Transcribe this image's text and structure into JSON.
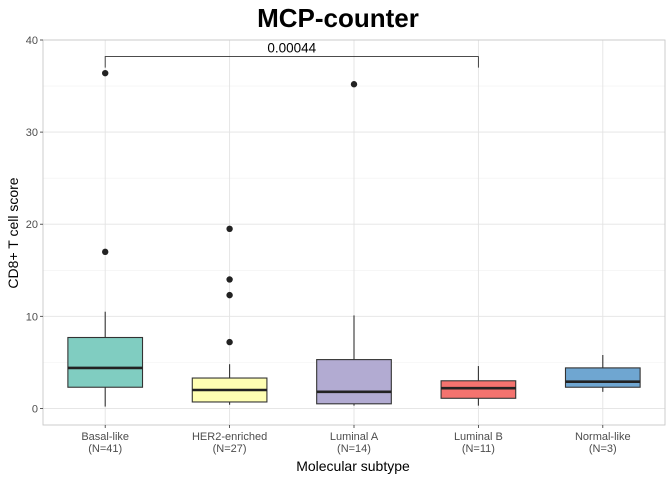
{
  "chart_data": {
    "type": "box",
    "title": "MCP-counter",
    "xlabel": "Molecular subtype",
    "ylabel": "CD8+ T cell score",
    "ylim": [
      -1.8,
      40
    ],
    "yticks": [
      0,
      10,
      20,
      30,
      40
    ],
    "grid": true,
    "legend": "none",
    "categories": [
      {
        "name": "Basal-like",
        "n_label": "(N=41)",
        "color": "#80cdc1",
        "whisker_low": 0.2,
        "q1": 2.3,
        "median": 4.4,
        "q3": 7.7,
        "whisker_high": 10.5,
        "outliers": [
          17.0,
          36.4
        ]
      },
      {
        "name": "HER2-enriched",
        "n_label": "(N=27)",
        "color": "#ffffb3",
        "whisker_low": 0.4,
        "q1": 0.7,
        "median": 2.0,
        "q3": 3.3,
        "whisker_high": 4.8,
        "outliers": [
          7.2,
          12.3,
          14.0,
          19.5
        ]
      },
      {
        "name": "Luminal A",
        "n_label": "(N=14)",
        "color": "#b2abd2",
        "whisker_low": 0.3,
        "q1": 0.5,
        "median": 1.8,
        "q3": 5.3,
        "whisker_high": 10.1,
        "outliers": [
          35.2
        ]
      },
      {
        "name": "Luminal B",
        "n_label": "(N=11)",
        "color": "#f4736f",
        "whisker_low": 0.3,
        "q1": 1.1,
        "median": 2.2,
        "q3": 3.0,
        "whisker_high": 4.6,
        "outliers": []
      },
      {
        "name": "Normal-like",
        "n_label": "(N=3)",
        "color": "#6fa6d1",
        "whisker_low": 1.8,
        "q1": 2.3,
        "median": 2.9,
        "q3": 4.4,
        "whisker_high": 5.8,
        "outliers": []
      }
    ],
    "annotations": [
      {
        "text": "0.00044",
        "from": 0,
        "to": 3,
        "y": 38.2
      }
    ]
  }
}
